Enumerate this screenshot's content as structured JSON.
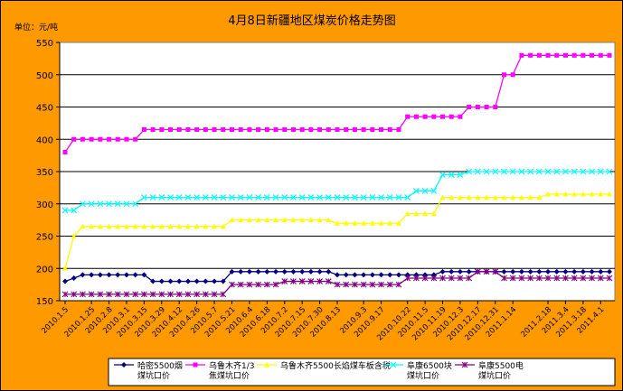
{
  "chart_data": {
    "type": "line",
    "title": "4月8日新疆地区煤炭价格走势图",
    "unit_label": "单位：元/吨",
    "xlabel": "",
    "ylabel": "",
    "ylim": [
      150,
      550
    ],
    "yticks": [
      150,
      200,
      250,
      300,
      350,
      400,
      450,
      500,
      550
    ],
    "grid": true,
    "legend_position": "bottom",
    "x": [
      "2010.1.5",
      "2010.1.12",
      "2010.1.19",
      "2010.1.25",
      "2010.2.1",
      "2010.2.8",
      "2010.2.22",
      "2010.3.1",
      "2010.3.8",
      "2010.3.15",
      "2010.3.22",
      "2010.3.29",
      "2010.4.6",
      "2010.4.12",
      "2010.4.19",
      "2010.4.26",
      "2010.5.4",
      "2010.5.7",
      "2010.5.14",
      "2010.5.21",
      "2010.5.28",
      "2010.6.4",
      "2010.6.11",
      "2010.6.18",
      "2010.6.25",
      "2010.7.2",
      "2010.7.9",
      "2010.7.15",
      "2010.7.23",
      "2010.7.30",
      "2010.8.6",
      "2010.8.13",
      "2010.8.20",
      "2010.8.27",
      "2010.9.3",
      "2010.9.10",
      "2010.9.17",
      "2010.9.25",
      "2010.10.8",
      "2010.10.22",
      "2010.10.29",
      "2010.11.5",
      "2010.11.12",
      "2010.11.19",
      "2010.11.26",
      "2010.12.3",
      "2010.12.10",
      "2010.12.17",
      "2010.12.24",
      "2010.12.31",
      "2011.1.7",
      "2011.1.14",
      "2011.1.21",
      "2011.1.28",
      "2011.2.11",
      "2011.2.18",
      "2011.2.25",
      "2011.3.4",
      "2011.3.11",
      "2011.3.18",
      "2011.3.25",
      "2011.4.1",
      "2011.4.8"
    ],
    "tick_labels": [
      "2010.1.5",
      "2010.1.25",
      "2010.2.8",
      "2010.3.1",
      "2010.3.15",
      "2010.3.29",
      "2010.4.12",
      "2010.4.26",
      "2010.5.7",
      "2010.5.21",
      "2010.6.4",
      "2010.6.18",
      "2010.7.2",
      "2010.7.15",
      "2010.7.30",
      "2010.8.13",
      "2010.9.3",
      "2010.9.17",
      "2010.10.22",
      "2010.11.5",
      "2010.11.19",
      "2010.12.3",
      "2010.12.17",
      "2010.12.31",
      "2011.1.14",
      "2011.2.18",
      "2011.3.4",
      "2011.3.18",
      "2011.4.1"
    ],
    "series": [
      {
        "name": "哈密5500烟煤坑口价",
        "legend_lines": [
          "哈密5500烟",
          "煤坑口价"
        ],
        "color": "#000080",
        "marker": "diamond",
        "values": [
          180,
          185,
          190,
          190,
          190,
          190,
          190,
          190,
          190,
          190,
          180,
          180,
          180,
          180,
          180,
          180,
          180,
          180,
          180,
          195,
          195,
          195,
          195,
          195,
          195,
          195,
          195,
          195,
          195,
          195,
          195,
          190,
          190,
          190,
          190,
          190,
          190,
          190,
          190,
          190,
          190,
          190,
          190,
          195,
          195,
          195,
          195,
          195,
          195,
          195,
          195,
          195,
          195,
          195,
          195,
          195,
          195,
          195,
          195,
          195,
          195,
          195,
          195
        ]
      },
      {
        "name": "乌鲁木齐1/3焦煤坑口价",
        "legend_lines": [
          "乌鲁木齐1/3",
          "焦煤坑口价"
        ],
        "color": "#ff00ff",
        "marker": "square",
        "values": [
          380,
          400,
          400,
          400,
          400,
          400,
          400,
          400,
          400,
          415,
          415,
          415,
          415,
          415,
          415,
          415,
          415,
          415,
          415,
          415,
          415,
          415,
          415,
          415,
          415,
          415,
          415,
          415,
          415,
          415,
          415,
          415,
          415,
          415,
          415,
          415,
          415,
          415,
          415,
          435,
          435,
          435,
          435,
          435,
          435,
          435,
          450,
          450,
          450,
          450,
          500,
          500,
          530,
          530,
          530,
          530,
          530,
          530,
          530,
          530,
          530,
          530,
          530
        ]
      },
      {
        "name": "乌鲁木齐5500长焰煤车板含税",
        "legend_lines": [
          "乌鲁木齐5500长焰煤车板含税"
        ],
        "color": "#ffff00",
        "marker": "triangle",
        "values": [
          200,
          250,
          265,
          265,
          265,
          265,
          265,
          265,
          265,
          265,
          265,
          265,
          265,
          265,
          265,
          265,
          265,
          265,
          265,
          275,
          275,
          275,
          275,
          275,
          275,
          275,
          275,
          275,
          275,
          275,
          275,
          270,
          270,
          270,
          270,
          270,
          270,
          270,
          270,
          285,
          285,
          285,
          285,
          310,
          310,
          310,
          310,
          310,
          310,
          310,
          310,
          310,
          310,
          310,
          310,
          315,
          315,
          315,
          315,
          315,
          315,
          315,
          315
        ]
      },
      {
        "name": "阜康6500块煤坑口价",
        "legend_lines": [
          "阜康6500块",
          "煤坑口价"
        ],
        "color": "#00ffff",
        "marker": "x",
        "values": [
          290,
          290,
          300,
          300,
          300,
          300,
          300,
          300,
          300,
          310,
          310,
          310,
          310,
          310,
          310,
          310,
          310,
          310,
          310,
          310,
          310,
          310,
          310,
          310,
          310,
          310,
          310,
          310,
          310,
          310,
          310,
          310,
          310,
          310,
          310,
          310,
          310,
          310,
          310,
          310,
          320,
          320,
          320,
          345,
          345,
          345,
          350,
          350,
          350,
          350,
          350,
          350,
          350,
          350,
          350,
          350,
          350,
          350,
          350,
          350,
          350,
          350,
          350
        ]
      },
      {
        "name": "阜康5500电煤坑口价",
        "legend_lines": [
          "阜康5500电",
          "煤坑口价"
        ],
        "color": "#800080",
        "marker": "star",
        "values": [
          160,
          160,
          160,
          160,
          160,
          160,
          160,
          160,
          160,
          160,
          160,
          160,
          160,
          160,
          160,
          160,
          160,
          160,
          160,
          175,
          175,
          175,
          175,
          175,
          175,
          180,
          180,
          180,
          180,
          180,
          180,
          175,
          175,
          175,
          175,
          175,
          175,
          175,
          175,
          185,
          185,
          185,
          185,
          185,
          185,
          185,
          185,
          195,
          195,
          195,
          185,
          185,
          185,
          185,
          185,
          185,
          185,
          185,
          185,
          185,
          185,
          185,
          185
        ]
      }
    ]
  }
}
